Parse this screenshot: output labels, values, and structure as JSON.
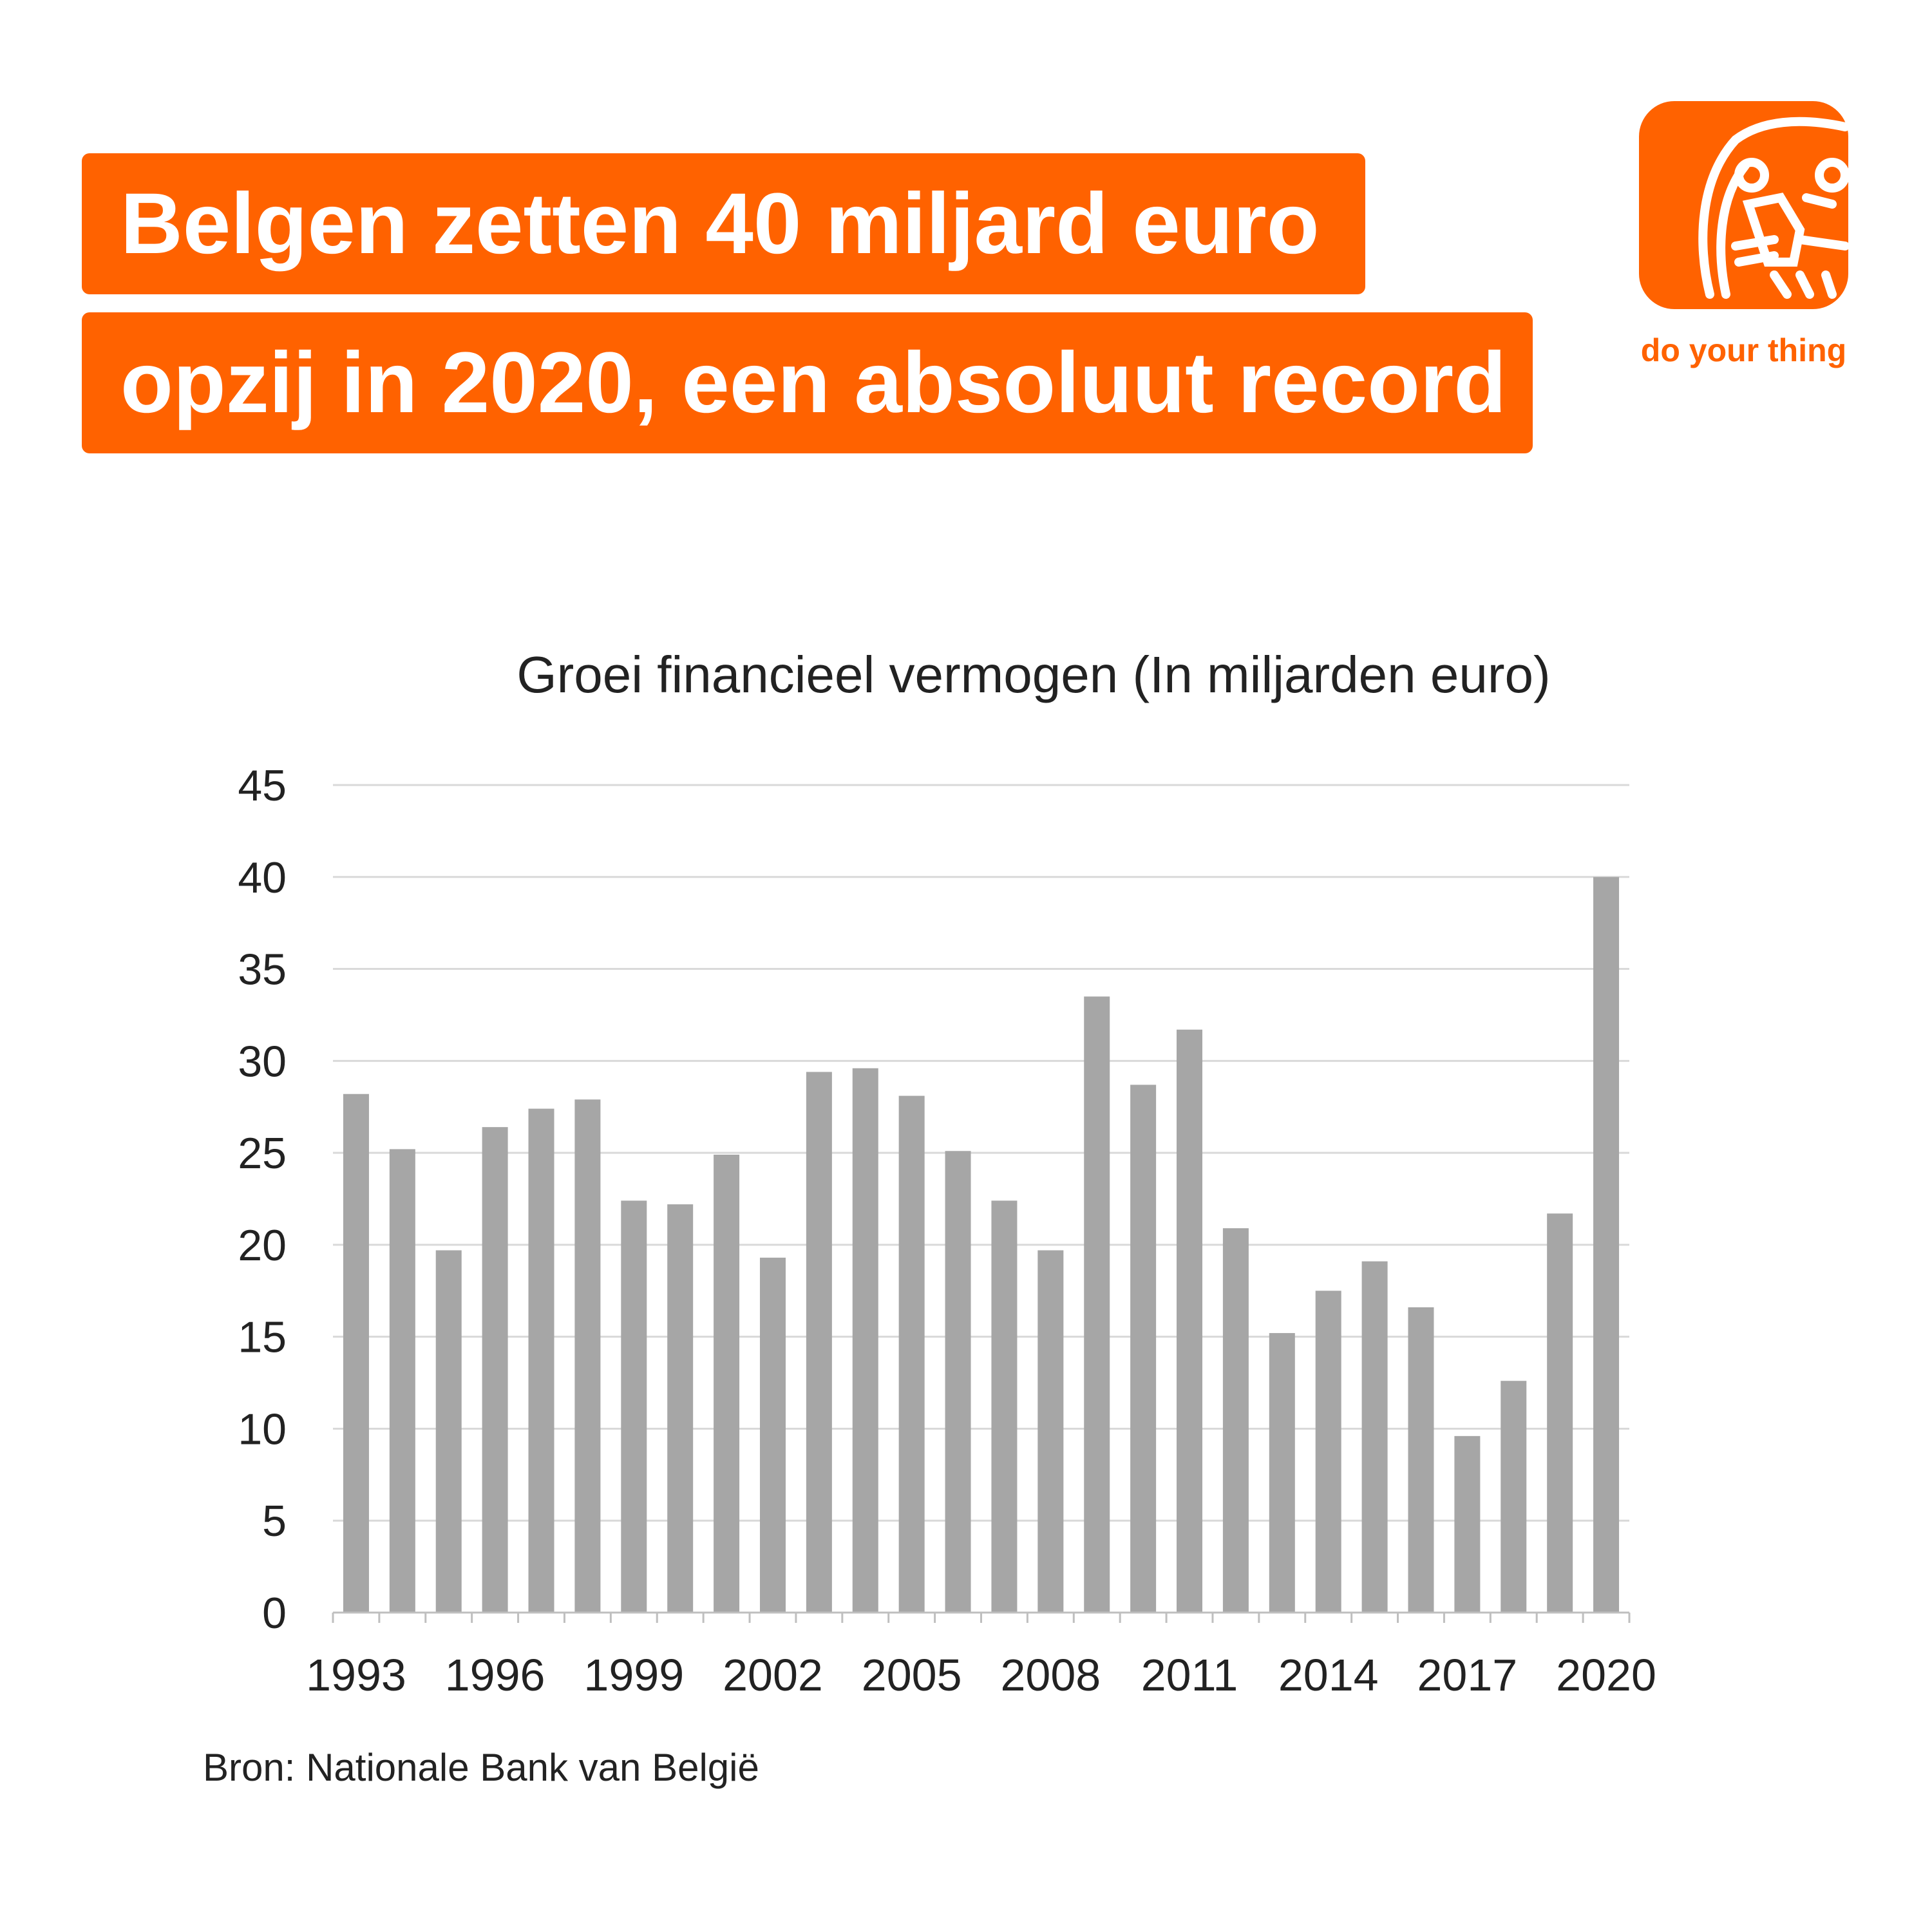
{
  "headline": {
    "line1": "Belgen zetten 40 miljard euro",
    "line2": "opzij in 2020, een absoluut record"
  },
  "brand": {
    "logo": "ING lion",
    "tagline": "do your thing",
    "color": "#FF6200"
  },
  "source": "Bron: Nationale Bank van België",
  "chart_data": {
    "type": "bar",
    "title": "Groei financieel vermogen (In miljarden euro)",
    "xlabel": "",
    "ylabel": "",
    "ylim": [
      0,
      45
    ],
    "yticks": [
      0,
      5,
      10,
      15,
      20,
      25,
      30,
      35,
      40,
      45
    ],
    "categories": [
      1993,
      1994,
      1995,
      1996,
      1997,
      1998,
      1999,
      2000,
      2001,
      2002,
      2003,
      2004,
      2005,
      2006,
      2007,
      2008,
      2009,
      2010,
      2011,
      2012,
      2013,
      2014,
      2015,
      2016,
      2017,
      2018,
      2019,
      2020
    ],
    "xtick_labels": [
      "1993",
      "1996",
      "1999",
      "2002",
      "2005",
      "2008",
      "2011",
      "2014",
      "2017",
      "2020"
    ],
    "values": [
      28.2,
      25.2,
      19.7,
      26.4,
      27.4,
      27.9,
      22.4,
      22.2,
      24.9,
      19.3,
      29.4,
      29.6,
      28.1,
      25.1,
      22.4,
      19.7,
      33.5,
      28.7,
      31.7,
      20.9,
      15.2,
      17.5,
      19.1,
      16.6,
      9.6,
      12.6,
      21.7,
      40.0
    ],
    "bar_color": "#A6A6A6",
    "grid": true,
    "legend": "none"
  }
}
